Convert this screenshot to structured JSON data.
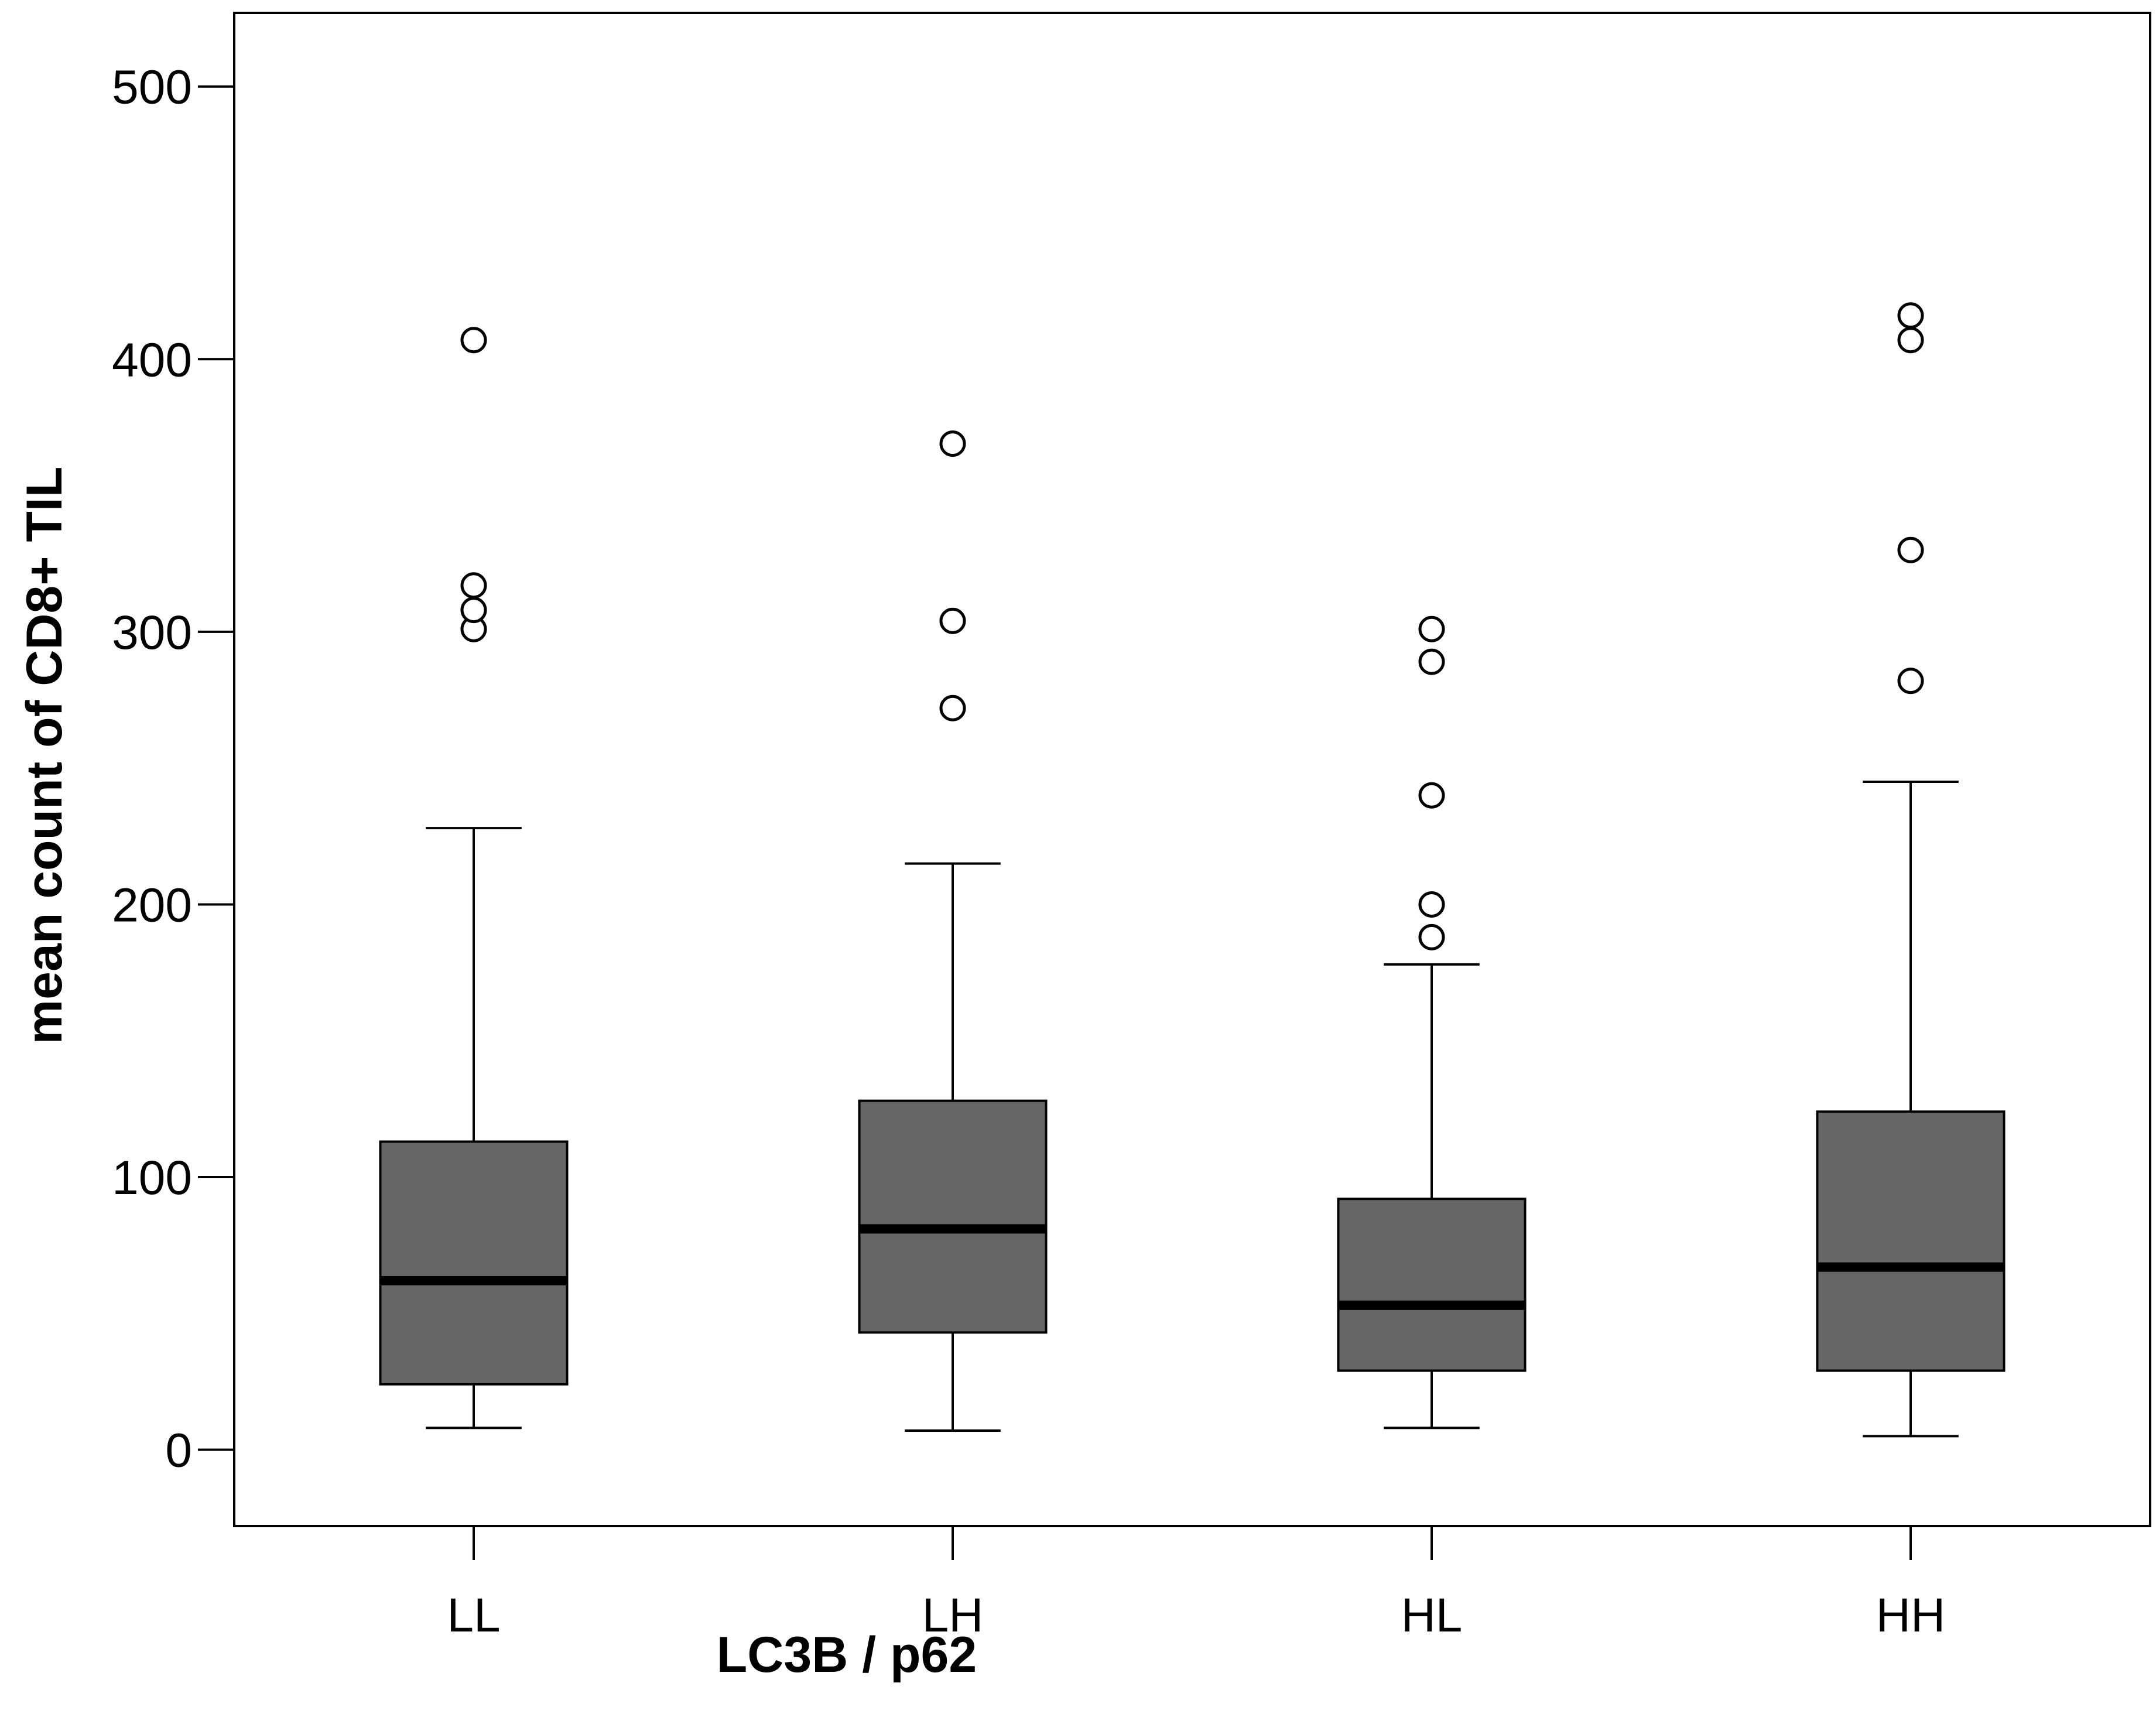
{
  "chart_data": {
    "type": "boxplot",
    "title": "",
    "xlabel": "LC3B / p62",
    "ylabel": "mean count of CD8+ TIL",
    "ylim": [
      -28,
      527
    ],
    "yticks": [
      0,
      100,
      200,
      300,
      400,
      500
    ],
    "ytick_labels": [
      "0",
      "100",
      "200",
      "300",
      "400",
      "500"
    ],
    "grid": false,
    "legend": "none",
    "colors": {
      "box_fill": "#666666",
      "median": "#000000",
      "stroke": "#000000",
      "outlier_fill": "#ffffff"
    },
    "categories": [
      "LL",
      "LH",
      "HL",
      "HH"
    ],
    "boxes": [
      {
        "category": "LL",
        "whisker_low": 8,
        "q1": 24,
        "median": 62,
        "q3": 113,
        "whisker_high": 228,
        "outliers": [
          301,
          308,
          317,
          407
        ]
      },
      {
        "category": "LH",
        "whisker_low": 7,
        "q1": 43,
        "median": 81,
        "q3": 128,
        "whisker_high": 215,
        "outliers": [
          272,
          304,
          369
        ]
      },
      {
        "category": "HL",
        "whisker_low": 8,
        "q1": 29,
        "median": 53,
        "q3": 92,
        "whisker_high": 178,
        "outliers": [
          188,
          200,
          240,
          289,
          301
        ]
      },
      {
        "category": "HH",
        "whisker_low": 5,
        "q1": 29,
        "median": 67,
        "q3": 124,
        "whisker_high": 245,
        "outliers": [
          282,
          330,
          407,
          416
        ]
      }
    ]
  }
}
